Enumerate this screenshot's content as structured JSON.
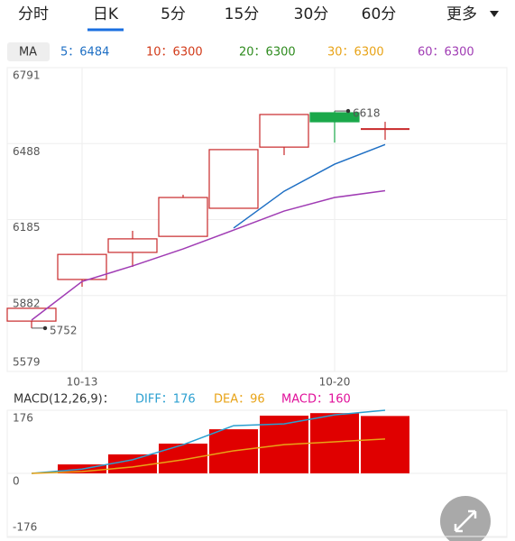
{
  "tabs": [
    "分时",
    "日K",
    "5分",
    "15分",
    "30分",
    "60分",
    "更多"
  ],
  "active_tab": 1,
  "ma_label": "MA",
  "ma_legend": [
    {
      "text": "5：6484",
      "color": "#1e6fc4"
    },
    {
      "text": "10：6300",
      "color": "#d23b1a"
    },
    {
      "text": "20：6300",
      "color": "#2e8b1e"
    },
    {
      "text": "30：6300",
      "color": "#e8a317"
    },
    {
      "text": "60：6300",
      "color": "#a03cb4"
    }
  ],
  "chart_data": [
    {
      "type": "candlestick",
      "categories": [
        null,
        "10-13",
        null,
        null,
        null,
        null,
        "10-20",
        null
      ],
      "open": [
        5780,
        5946,
        6054,
        6118,
        6230,
        6474,
        6611,
        6546
      ],
      "high": [
        5831,
        6046,
        6140,
        6284,
        6464,
        6604,
        6618,
        6575
      ],
      "low": [
        5752,
        5917,
        5996,
        6118,
        6230,
        6442,
        6492,
        6503
      ],
      "close": [
        5831,
        6046,
        6108,
        6273,
        6464,
        6604,
        6575,
        6546
      ],
      "up_color": "#c8282a",
      "down_color": "#1aa84a",
      "series": [
        {
          "color": "#1e6fc4",
          "values": [
            null,
            null,
            null,
            null,
            6151,
            6298,
            6406,
            6484
          ]
        },
        {
          "color": "#a03cb4",
          "values": [
            5784,
            5938,
            6000,
            6068,
            6143,
            6219,
            6273,
            6300
          ]
        }
      ],
      "ylim": [
        5579,
        6791
      ],
      "yticks": [
        5579,
        5882,
        6185,
        6488,
        6791
      ],
      "grid": true
    },
    {
      "type": "macd",
      "title": "MACD(12,26,9)：",
      "categories": [
        null,
        null,
        null,
        null,
        null,
        null,
        null,
        null
      ],
      "series": [
        {
          "name": "DIFF：176",
          "color": "#2a9fd0",
          "kind": "line",
          "values": [
            0,
            12,
            38,
            80,
            133,
            138,
            163,
            176
          ]
        },
        {
          "name": "DEA：96",
          "color": "#e8a317",
          "kind": "line",
          "values": [
            0,
            5,
            18,
            38,
            63,
            80,
            88,
            96
          ]
        },
        {
          "name": "MACD：160",
          "color": "#e0109a",
          "bar_color": "#e00000",
          "kind": "bar",
          "values": [
            0,
            25,
            53,
            83,
            123,
            161,
            168,
            160
          ]
        }
      ],
      "ylim": [
        -176,
        176
      ],
      "yticks": [
        -176,
        0,
        176
      ],
      "grid": true
    }
  ]
}
